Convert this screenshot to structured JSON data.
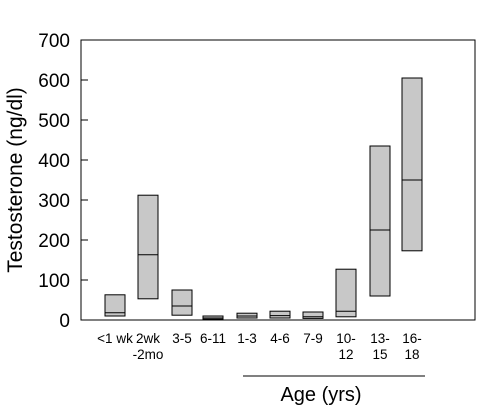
{
  "chart_data": {
    "type": "box",
    "title": "",
    "ylabel": "Testosterone (ng/dl)",
    "xlabel": "Age (yrs)",
    "ylim": [
      0,
      700
    ],
    "yticks": [
      0,
      100,
      200,
      300,
      400,
      500,
      600,
      700
    ],
    "grid": false,
    "box_fill": "#c8c8c8",
    "categories": [
      {
        "label": [
          "<1 wk"
        ],
        "low": 10,
        "median": 18,
        "high": 63
      },
      {
        "label": [
          "2wk",
          "-2mo"
        ],
        "low": 53,
        "median": 163,
        "high": 312
      },
      {
        "label": [
          "3-5"
        ],
        "low": 12,
        "median": 35,
        "high": 75
      },
      {
        "label": [
          "6-11"
        ],
        "low": 2,
        "median": 5,
        "high": 10
      },
      {
        "label": [
          "1-3"
        ],
        "low": 5,
        "median": 10,
        "high": 17
      },
      {
        "label": [
          "4-6"
        ],
        "low": 5,
        "median": 11,
        "high": 22
      },
      {
        "label": [
          "7-9"
        ],
        "low": 4,
        "median": 8,
        "high": 20
      },
      {
        "label": [
          "10-",
          "12"
        ],
        "low": 8,
        "median": 22,
        "high": 127
      },
      {
        "label": [
          "13-",
          "15"
        ],
        "low": 60,
        "median": 225,
        "high": 435
      },
      {
        "label": [
          "16-",
          "18"
        ],
        "low": 173,
        "median": 350,
        "high": 605
      }
    ]
  }
}
